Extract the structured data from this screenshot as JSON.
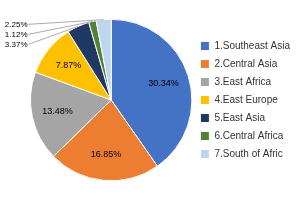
{
  "chart_data": {
    "type": "pie",
    "categories": [
      "1.Southeast Asia",
      "2.Central Asia",
      "3.East Africa",
      "4.East Europe",
      "5.East Asia",
      "6.Central Africa",
      "7.South of Afric"
    ],
    "values": [
      30.34,
      16.85,
      13.48,
      7.87,
      3.37,
      1.12,
      2.25
    ],
    "value_labels": [
      "30.34%",
      "16.85%",
      "13.48%",
      "7.87%",
      "3.37%",
      "1.12%",
      "2.25%"
    ],
    "colors": [
      "#4472C4",
      "#ED7D31",
      "#A5A5A5",
      "#FFC000",
      "#1F3864",
      "#548235",
      "#BDD7EE"
    ],
    "data_labels": true,
    "legend": "right"
  }
}
